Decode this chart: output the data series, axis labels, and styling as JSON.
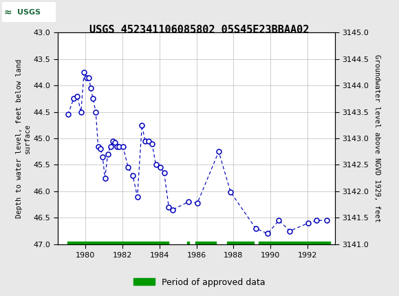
{
  "title": "USGS 452341106085802 05S45E23BBAA02",
  "ylabel_left": "Depth to water level, feet below land\nsurface",
  "ylabel_right": "Groundwater level above NGVD 1929, feet",
  "ylim_left": [
    47.0,
    43.0
  ],
  "ylim_right": [
    3141.0,
    3145.0
  ],
  "xlim": [
    1978.5,
    1993.5
  ],
  "yticks_left": [
    43.0,
    43.5,
    44.0,
    44.5,
    45.0,
    45.5,
    46.0,
    46.5,
    47.0
  ],
  "yticks_right": [
    3141.0,
    3141.5,
    3142.0,
    3142.5,
    3143.0,
    3143.5,
    3144.0,
    3144.5,
    3145.0
  ],
  "xticks": [
    1980,
    1982,
    1984,
    1986,
    1988,
    1990,
    1992
  ],
  "header_color": "#1b6b3a",
  "plot_bg": "#f5f5f5",
  "fig_bg": "#e8e8e8",
  "grid_color": "#bbbbbb",
  "data_color": "#0000bb",
  "data_x": [
    1979.05,
    1979.35,
    1979.55,
    1979.75,
    1979.92,
    1980.05,
    1980.18,
    1980.28,
    1980.4,
    1980.55,
    1980.68,
    1980.8,
    1980.92,
    1981.05,
    1981.2,
    1981.35,
    1981.48,
    1981.58,
    1981.7,
    1981.82,
    1982.02,
    1982.3,
    1982.55,
    1982.8,
    1983.05,
    1983.22,
    1983.4,
    1983.6,
    1983.8,
    1984.05,
    1984.25,
    1984.5,
    1984.7,
    1985.55,
    1986.05,
    1987.2,
    1987.85,
    1989.2,
    1989.85,
    1990.45,
    1991.05,
    1992.05,
    1992.5,
    1993.05
  ],
  "data_y": [
    44.55,
    44.25,
    44.2,
    44.5,
    43.75,
    43.85,
    43.85,
    44.05,
    44.25,
    44.5,
    45.15,
    45.2,
    45.35,
    45.75,
    45.3,
    45.15,
    45.05,
    45.08,
    45.15,
    45.15,
    45.15,
    45.55,
    45.7,
    46.1,
    44.75,
    45.05,
    45.05,
    45.1,
    45.5,
    45.55,
    45.65,
    46.3,
    46.35,
    46.2,
    46.22,
    45.25,
    46.02,
    46.7,
    46.8,
    46.55,
    46.75,
    46.6,
    46.55,
    46.55
  ],
  "approved_periods": [
    [
      1979.0,
      1984.5
    ],
    [
      1985.48,
      1985.62
    ],
    [
      1985.95,
      1987.05
    ],
    [
      1987.65,
      1989.1
    ],
    [
      1989.38,
      1993.25
    ]
  ],
  "legend_label": "Period of approved data",
  "legend_color": "#009900"
}
